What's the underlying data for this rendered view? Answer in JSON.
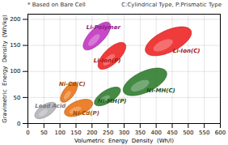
{
  "chart_data": {
    "type": "ellipse",
    "subtitle": "* Based on Bare Cell",
    "annotations": [
      {
        "text": "C:Cylindrical Type, P:Prismatic Type"
      }
    ],
    "xlabel": "Volumetric  Energy  Density  (Wh/l)",
    "ylabel": "Gravimetric  Energy  Density  (Wh/kg)",
    "xlim": [
      0,
      600
    ],
    "ylim": [
      0,
      210
    ],
    "xticks": [
      0,
      50,
      100,
      150,
      200,
      250,
      300,
      350,
      400,
      450,
      500,
      550,
      600
    ],
    "yticks": [
      0,
      50,
      100,
      150,
      200
    ],
    "grid": true,
    "series": [
      {
        "name": "Lead Acid",
        "color": "#b0b0b8",
        "cx": 55,
        "cy": 25,
        "width": 70,
        "height": 24,
        "angle": 18,
        "label_x": 22,
        "label_y": 30
      },
      {
        "name": "Ni-Cd(C)",
        "color": "#e87010",
        "cx": 128,
        "cy": 60,
        "width": 60,
        "height": 26,
        "angle": 32,
        "label_x": 97,
        "label_y": 73
      },
      {
        "name": "Ni-Cd(P)",
        "color": "#e87010",
        "cx": 158,
        "cy": 30,
        "width": 90,
        "height": 28,
        "angle": 12,
        "label_x": 140,
        "label_y": 16
      },
      {
        "name": "Ni-MH(P)",
        "color": "#2a7a2a",
        "cx": 248,
        "cy": 52,
        "width": 85,
        "height": 26,
        "angle": 18,
        "label_x": 218,
        "label_y": 40
      },
      {
        "name": "Ni-MH(C)",
        "color": "#2a7a2a",
        "cx": 365,
        "cy": 80,
        "width": 140,
        "height": 42,
        "angle": 14,
        "label_x": 370,
        "label_y": 60
      },
      {
        "name": "Li-Polymer",
        "color": "#c030c0",
        "cx": 215,
        "cy": 168,
        "width": 95,
        "height": 34,
        "angle": 28,
        "label_x": 182,
        "label_y": 181
      },
      {
        "name": "Li-Ion(P)",
        "color": "#ee2020",
        "cx": 262,
        "cy": 130,
        "width": 95,
        "height": 34,
        "angle": 26,
        "label_x": 205,
        "label_y": 118
      },
      {
        "name": "Li-Ion(C)",
        "color": "#ee2020",
        "cx": 438,
        "cy": 158,
        "width": 148,
        "height": 44,
        "angle": 14,
        "label_x": 452,
        "label_y": 136
      }
    ]
  }
}
